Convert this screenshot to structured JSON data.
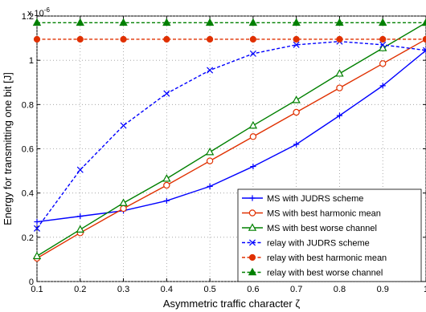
{
  "chart_data": {
    "type": "line",
    "xlabel": "Asymmetric traffic character ζ",
    "ylabel": "Energy for transmitting one bit [J]",
    "y_scale_label": "x 10",
    "y_scale_exponent": "-6",
    "xlim": [
      0.1,
      1.0
    ],
    "ylim": [
      0,
      1.2
    ],
    "grid": true,
    "legend_position": "bottom-right",
    "x_ticks": [
      "0.1",
      "0.2",
      "0.3",
      "0.4",
      "0.5",
      "0.6",
      "0.7",
      "0.8",
      "0.9",
      "1"
    ],
    "y_ticks": [
      "0",
      "0.2",
      "0.4",
      "0.6",
      "0.8",
      "1",
      "1.2"
    ],
    "x": [
      0.1,
      0.2,
      0.3,
      0.4,
      0.5,
      0.6,
      0.7,
      0.8,
      0.9,
      1.0
    ],
    "series": [
      {
        "name": "MS with JUDRS scheme",
        "color": "#0000ff",
        "marker": "plus",
        "dash": "solid",
        "values": [
          0.27,
          0.295,
          0.32,
          0.365,
          0.43,
          0.52,
          0.62,
          0.75,
          0.885,
          1.045
        ]
      },
      {
        "name": "MS with best harmonic mean",
        "color": "#e03000",
        "marker": "circle",
        "dash": "solid",
        "values": [
          0.105,
          0.22,
          0.33,
          0.435,
          0.545,
          0.655,
          0.765,
          0.875,
          0.985,
          1.095
        ]
      },
      {
        "name": "MS with best worse channel",
        "color": "#008000",
        "marker": "triangle",
        "dash": "solid",
        "values": [
          0.115,
          0.235,
          0.355,
          0.465,
          0.585,
          0.705,
          0.82,
          0.94,
          1.055,
          1.17
        ]
      },
      {
        "name": "relay with JUDRS scheme",
        "color": "#0000ff",
        "marker": "x",
        "dash": "dashed",
        "values": [
          0.24,
          0.505,
          0.705,
          0.85,
          0.955,
          1.03,
          1.07,
          1.085,
          1.07,
          1.045
        ]
      },
      {
        "name": "relay with best harmonic mean",
        "color": "#e03000",
        "marker": "dot",
        "dash": "dashed",
        "values": [
          1.095,
          1.095,
          1.095,
          1.095,
          1.095,
          1.095,
          1.095,
          1.095,
          1.095,
          1.095
        ]
      },
      {
        "name": "relay with best worse channel",
        "color": "#008000",
        "marker": "triangle-filled",
        "dash": "dashed",
        "values": [
          1.17,
          1.17,
          1.17,
          1.17,
          1.17,
          1.17,
          1.17,
          1.17,
          1.17,
          1.17
        ]
      }
    ]
  }
}
